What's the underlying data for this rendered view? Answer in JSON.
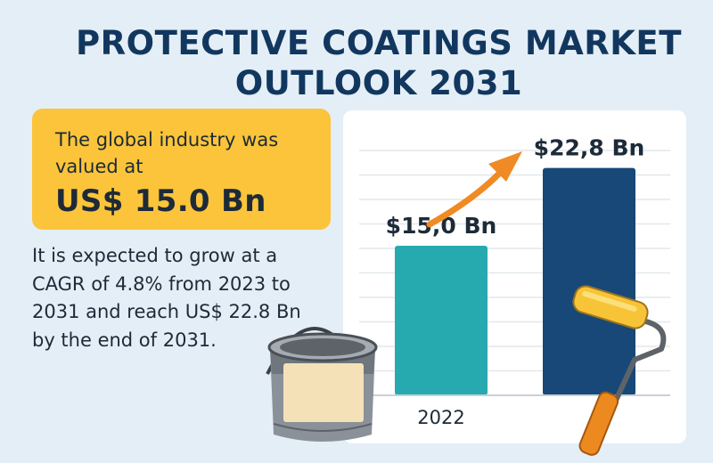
{
  "title_line1": "PROTECTIVE COATINGS MARKET",
  "title_line2": "OUTLOOK 2031",
  "callout": {
    "lead": "The global industry was valued at",
    "value": "US$ 15.0 Bn"
  },
  "description": "It is expected to grow at a CAGR of 4.8% from 2023 to 2031 and reach US$ 22.8 Bn by the end of 2031.",
  "colors": {
    "title": "#12375f",
    "callout_bg": "#fbc43a",
    "bar_2022": "#27a9b0",
    "bar_2031": "#174877",
    "arrow": "#f08a24"
  },
  "icons": [
    "paint-can-icon",
    "paint-roller-icon",
    "growth-arrow-icon"
  ],
  "chart_data": {
    "type": "bar",
    "categories": [
      "2022",
      ""
    ],
    "values": [
      15.0,
      22.8
    ],
    "data_labels": [
      "$15,0 Bn",
      "$22,8 Bn"
    ],
    "ylim": [
      0,
      25
    ],
    "grid": true
  }
}
